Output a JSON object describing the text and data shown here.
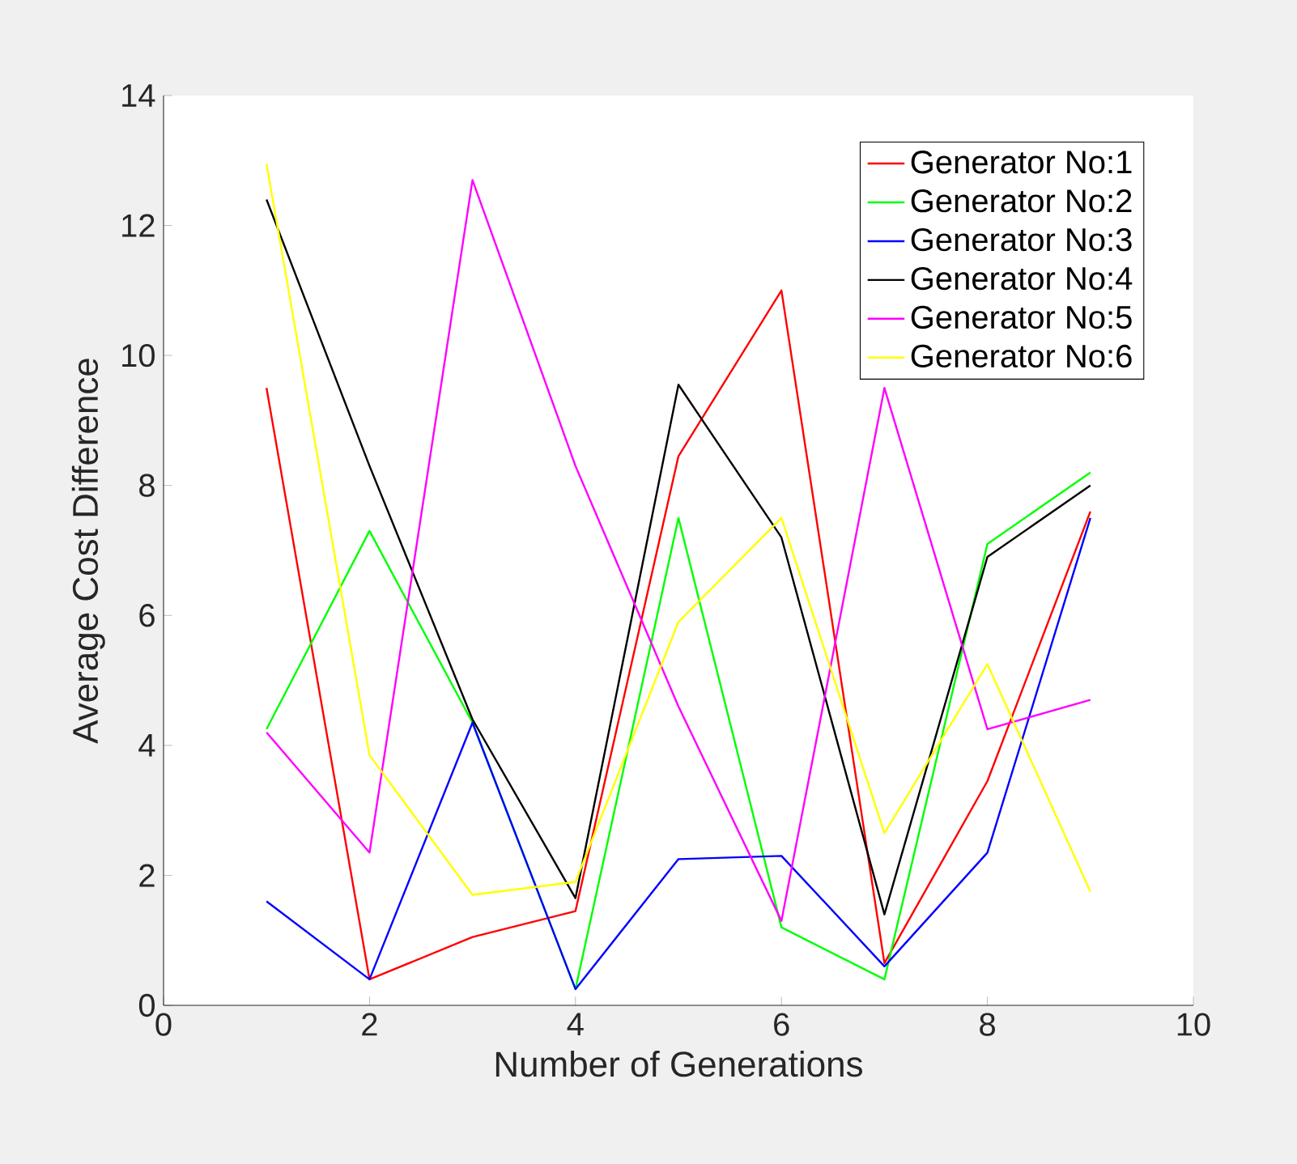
{
  "chart_data": {
    "type": "line",
    "xlabel": "Number of Generations",
    "ylabel": "Average Cost Difference",
    "x": [
      1,
      2,
      3,
      4,
      5,
      6,
      7,
      8,
      9
    ],
    "series": [
      {
        "name": "Generator No:1",
        "color": "#ff0000",
        "values": [
          9.5,
          0.4,
          1.05,
          1.45,
          8.45,
          11,
          0.65,
          3.45,
          7.6
        ]
      },
      {
        "name": "Generator No:2",
        "color": "#00ff00",
        "values": [
          4.25,
          7.3,
          4.35,
          0.25,
          7.5,
          1.2,
          0.4,
          7.1,
          8.2
        ]
      },
      {
        "name": "Generator No:3",
        "color": "#0000ff",
        "values": [
          1.6,
          0.4,
          4.35,
          0.25,
          2.25,
          2.3,
          0.6,
          2.35,
          7.5
        ]
      },
      {
        "name": "Generator No:4",
        "color": "#000000",
        "values": [
          12.4,
          8.3,
          4.4,
          1.65,
          9.55,
          7.2,
          1.4,
          6.9,
          8.0
        ]
      },
      {
        "name": "Generator No:5",
        "color": "#ff00ff",
        "values": [
          4.2,
          2.35,
          12.7,
          8.3,
          4.6,
          1.3,
          9.5,
          4.25,
          4.7
        ]
      },
      {
        "name": "Generator No:6",
        "color": "#ffff00",
        "values": [
          12.95,
          3.85,
          1.7,
          1.9,
          5.9,
          7.5,
          2.65,
          5.25,
          1.75
        ]
      }
    ],
    "xlim": [
      0,
      10
    ],
    "xticks": [
      0,
      2,
      4,
      6,
      8,
      10
    ],
    "ylim": [
      0,
      14
    ],
    "yticks": [
      0,
      2,
      4,
      6,
      8,
      10,
      12,
      14
    ],
    "grid": false,
    "legend": "top right",
    "marker": "none",
    "line_style": "solid"
  }
}
